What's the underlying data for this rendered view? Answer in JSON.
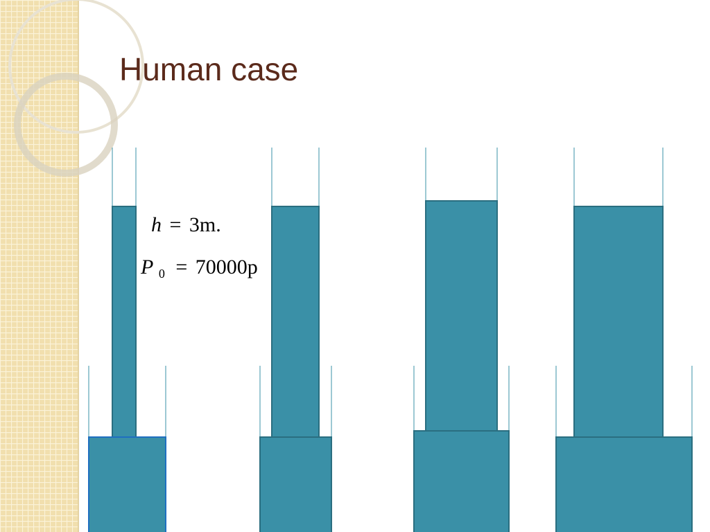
{
  "header": {
    "title": "Human case"
  },
  "equations": [
    {
      "lhs": "h",
      "op": "=",
      "rhs": "3m."
    },
    {
      "lhs": "P",
      "sub": "0",
      "op": "=",
      "rhs": "70000p"
    }
  ]
}
